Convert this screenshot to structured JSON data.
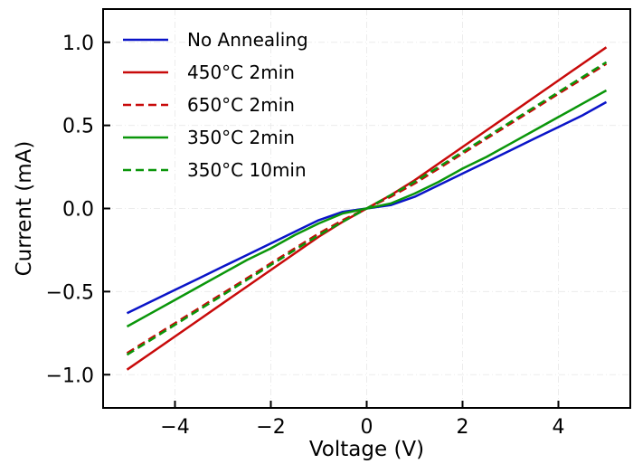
{
  "chart_data": {
    "type": "line",
    "xlabel": "Voltage (V)",
    "ylabel": "Current (mA)",
    "xlim": [
      -5.5,
      5.5
    ],
    "ylim": [
      -1.2,
      1.2
    ],
    "xticks": [
      -4,
      -2,
      0,
      2,
      4
    ],
    "yticks": [
      -1.0,
      -0.5,
      0.0,
      0.5,
      1.0
    ],
    "xtick_labels": [
      "−4",
      "−2",
      "0",
      "2",
      "4"
    ],
    "ytick_labels": [
      "−1.0",
      "−0.5",
      "0.0",
      "0.5",
      "1.0"
    ],
    "grid": true,
    "legend_position": "top-left",
    "x": [
      -5,
      -4.5,
      -4,
      -3.5,
      -3,
      -2.5,
      -2,
      -1.5,
      -1,
      -0.5,
      0,
      0.5,
      1,
      1.5,
      2,
      2.5,
      3,
      3.5,
      4,
      4.5,
      5
    ],
    "series": [
      {
        "name": "No Annealing",
        "color": "#0a14c8",
        "dash": "solid",
        "values": [
          -0.63,
          -0.56,
          -0.49,
          -0.42,
          -0.35,
          -0.28,
          -0.21,
          -0.14,
          -0.07,
          -0.02,
          0.0,
          0.02,
          0.07,
          0.14,
          0.21,
          0.28,
          0.35,
          0.42,
          0.49,
          0.56,
          0.64
        ]
      },
      {
        "name": "450°C 2min",
        "color": "#c80a0a",
        "dash": "solid",
        "values": [
          -0.97,
          -0.87,
          -0.77,
          -0.67,
          -0.57,
          -0.47,
          -0.37,
          -0.27,
          -0.17,
          -0.08,
          0.0,
          0.08,
          0.17,
          0.27,
          0.37,
          0.47,
          0.57,
          0.67,
          0.77,
          0.87,
          0.97
        ]
      },
      {
        "name": "650°C 2min",
        "color": "#c80a0a",
        "dash": "dashed",
        "values": [
          -0.87,
          -0.78,
          -0.69,
          -0.6,
          -0.51,
          -0.42,
          -0.33,
          -0.24,
          -0.15,
          -0.07,
          0.0,
          0.07,
          0.15,
          0.24,
          0.33,
          0.42,
          0.51,
          0.6,
          0.69,
          0.78,
          0.87
        ]
      },
      {
        "name": "350°C 2min",
        "color": "#0a960a",
        "dash": "solid",
        "values": [
          -0.71,
          -0.63,
          -0.55,
          -0.47,
          -0.39,
          -0.31,
          -0.24,
          -0.16,
          -0.09,
          -0.03,
          0.0,
          0.03,
          0.09,
          0.16,
          0.24,
          0.31,
          0.39,
          0.47,
          0.55,
          0.63,
          0.71
        ]
      },
      {
        "name": "350°C 10min",
        "color": "#0a960a",
        "dash": "dashed",
        "values": [
          -0.88,
          -0.79,
          -0.7,
          -0.61,
          -0.52,
          -0.43,
          -0.34,
          -0.25,
          -0.16,
          -0.08,
          0.0,
          0.08,
          0.16,
          0.25,
          0.34,
          0.43,
          0.52,
          0.61,
          0.7,
          0.79,
          0.88
        ]
      }
    ]
  }
}
